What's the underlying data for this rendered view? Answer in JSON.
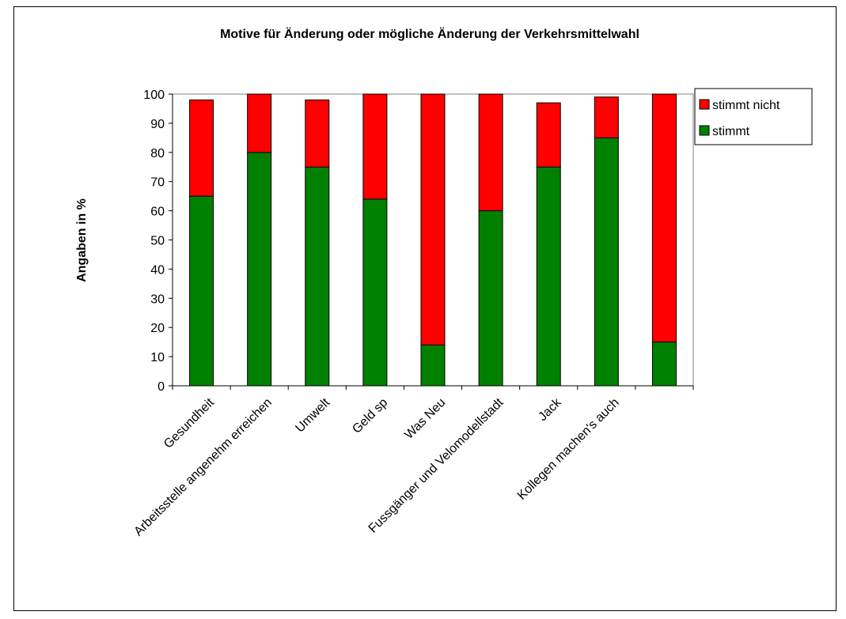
{
  "chart_data": {
    "type": "bar",
    "stacked": true,
    "title": "Motive für Änderung oder mögliche Änderung der Verkehrsmittelwahl",
    "xlabel": "",
    "ylabel": "Angaben in %",
    "ylim": [
      0,
      100
    ],
    "ytick_step": 10,
    "grid": false,
    "legend_position": "right",
    "categories": [
      "Gesundheit",
      "Arbeitsstelle angenehm erreichen",
      "Umwelt",
      "Geld sp",
      "Was Neu",
      "Fussgänger und Velomodellstadt",
      "Jack",
      "Kollegen machen's auch",
      ""
    ],
    "series": [
      {
        "name": "stimmt",
        "color": "#008000",
        "values": [
          65,
          80,
          75,
          64,
          14,
          60,
          75,
          85,
          15
        ]
      },
      {
        "name": "stimmt nicht",
        "color": "#ff0000",
        "values": [
          33,
          20,
          23,
          36,
          86,
          40,
          22,
          14,
          85
        ]
      }
    ],
    "legend_order": [
      "stimmt nicht",
      "stimmt"
    ]
  }
}
